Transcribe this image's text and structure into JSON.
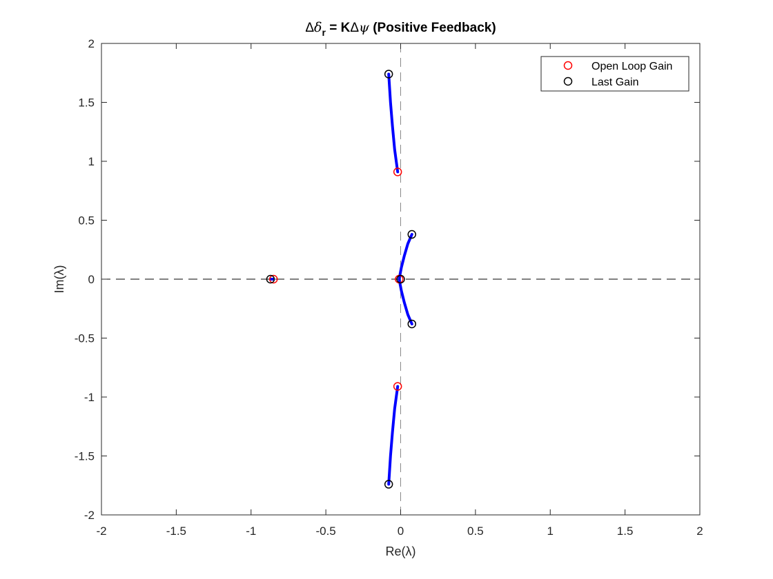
{
  "chart_data": {
    "type": "scatter",
    "title": {
      "delta1": "Δ",
      "delta2": "δ",
      "sub": "r",
      "mid": " = K",
      "delta3": "Δ",
      "psi": "ψ",
      "suffix": " (Positive Feedback)"
    },
    "xlabel": "Re(λ)",
    "ylabel": "Im(λ)",
    "xlim": [
      -2,
      2
    ],
    "ylim": [
      -2,
      2
    ],
    "xticks": [
      -2,
      -1.5,
      -1,
      -0.5,
      0,
      0.5,
      1,
      1.5,
      2
    ],
    "yticks": [
      -2,
      -1.5,
      -1,
      -0.5,
      0,
      0.5,
      1,
      1.5,
      2
    ],
    "xtick_labels": [
      "-2",
      "-1.5",
      "-1",
      "-0.5",
      "0",
      "0.5",
      "1",
      "1.5",
      "2"
    ],
    "ytick_labels": [
      "-2",
      "-1.5",
      "-1",
      "-0.5",
      "0",
      "0.5",
      "1",
      "1.5",
      "2"
    ],
    "grid": false,
    "reference_lines": {
      "x": 0,
      "y": 0,
      "style": "dashed"
    },
    "legend": {
      "position": "top-right",
      "entries": [
        {
          "label": "Open Loop Gain",
          "color": "#ff0000",
          "marker": "circle"
        },
        {
          "label": "Last Gain",
          "color": "#000000",
          "marker": "circle"
        }
      ]
    },
    "locus_color": "#0000ff",
    "branches": [
      {
        "points": [
          [
            -0.02,
            0.91
          ],
          [
            -0.04,
            1.1
          ],
          [
            -0.055,
            1.3
          ],
          [
            -0.068,
            1.5
          ],
          [
            -0.08,
            1.74
          ]
        ]
      },
      {
        "points": [
          [
            -0.02,
            -0.91
          ],
          [
            -0.04,
            -1.1
          ],
          [
            -0.055,
            -1.3
          ],
          [
            -0.068,
            -1.5
          ],
          [
            -0.08,
            -1.74
          ]
        ]
      },
      {
        "points": [
          [
            -0.01,
            0.0
          ],
          [
            0.005,
            0.1
          ],
          [
            0.025,
            0.2
          ],
          [
            0.048,
            0.3
          ],
          [
            0.075,
            0.38
          ]
        ]
      },
      {
        "points": [
          [
            -0.01,
            0.0
          ],
          [
            0.005,
            -0.1
          ],
          [
            0.025,
            -0.2
          ],
          [
            0.048,
            -0.3
          ],
          [
            0.075,
            -0.38
          ]
        ]
      },
      {
        "points": [
          [
            -0.85,
            0.0
          ],
          [
            -0.87,
            0.0
          ]
        ]
      }
    ],
    "series": [
      {
        "name": "Open Loop Gain",
        "marker_color": "#ff0000",
        "points": [
          [
            -0.02,
            0.91
          ],
          [
            -0.02,
            -0.91
          ],
          [
            -0.01,
            0.0
          ],
          [
            -0.85,
            0.0
          ]
        ]
      },
      {
        "name": "Last Gain",
        "marker_color": "#000000",
        "points": [
          [
            -0.08,
            1.74
          ],
          [
            -0.08,
            -1.74
          ],
          [
            0.075,
            0.38
          ],
          [
            0.075,
            -0.38
          ],
          [
            0.0,
            0.0
          ],
          [
            -0.87,
            0.0
          ]
        ]
      }
    ]
  }
}
